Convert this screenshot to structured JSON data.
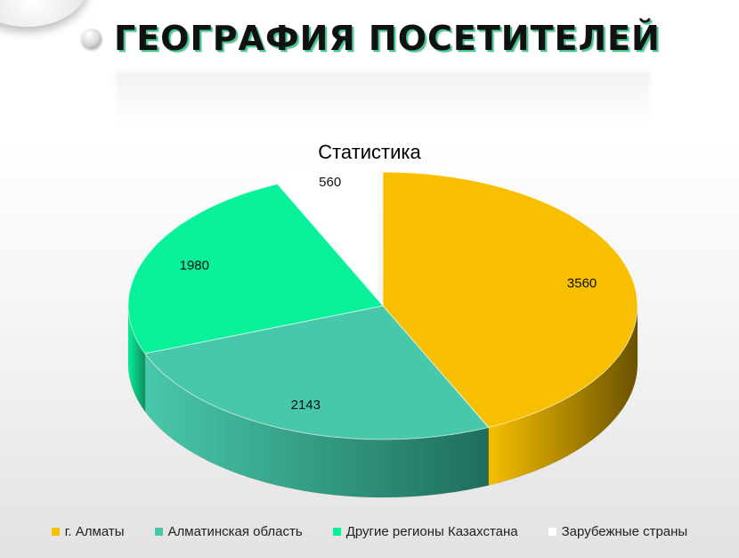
{
  "page": {
    "title": "ГЕОГРАФИЯ ПОСЕТИТЕЛЕЙ"
  },
  "chart_data": {
    "type": "pie",
    "title": "Статистика",
    "categories": [
      "г. Алматы",
      "Алматинская область",
      "Другие регионы Казахстана",
      "Зарубежные страны"
    ],
    "values": [
      3560,
      2143,
      1980,
      560
    ],
    "value_labels": [
      "3560",
      "2143",
      "1980",
      "560"
    ],
    "colors": [
      "#f7bf00",
      "#48c8aa",
      "#07f09a",
      "#ffffff"
    ],
    "side_colors": [
      "#6b5200",
      "#1f6e5c",
      "#0c8f5e",
      "#dddddd"
    ],
    "legend_position": "bottom",
    "three_d": true
  }
}
